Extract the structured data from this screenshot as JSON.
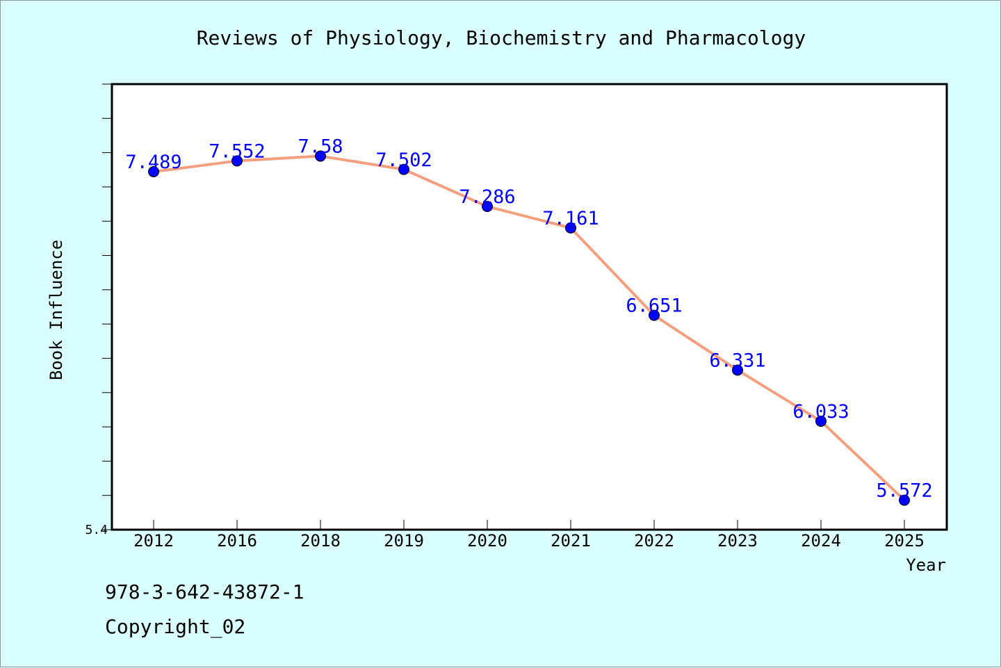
{
  "chart_data": {
    "type": "line",
    "title": "Reviews of Physiology, Biochemistry and Pharmacology",
    "xlabel": "Year",
    "ylabel": "Book Influence",
    "categories": [
      "2012",
      "2016",
      "2018",
      "2019",
      "2020",
      "2021",
      "2022",
      "2023",
      "2024",
      "2025"
    ],
    "series": [
      {
        "values": [
          7.489,
          7.552,
          7.58,
          7.502,
          7.286,
          7.161,
          6.651,
          6.331,
          6.033,
          5.572
        ],
        "labels": [
          "7.489",
          "7.552",
          "7.58",
          "7.502",
          "7.286",
          "7.161",
          "6.651",
          "6.331",
          "6.033",
          "5.572"
        ]
      }
    ],
    "ylim": [
      5.4,
      8.0
    ],
    "ytick_labels": [
      "5.4"
    ],
    "grid": false,
    "colors": {
      "line": "#f4a07f",
      "marker": "#0000ff",
      "label": "#0000ff",
      "background": "#d9ffff",
      "plot_background": "#ffffff"
    }
  },
  "footer": {
    "isbn": "978-3-642-43872-1",
    "copyright": "Copyright_02"
  }
}
